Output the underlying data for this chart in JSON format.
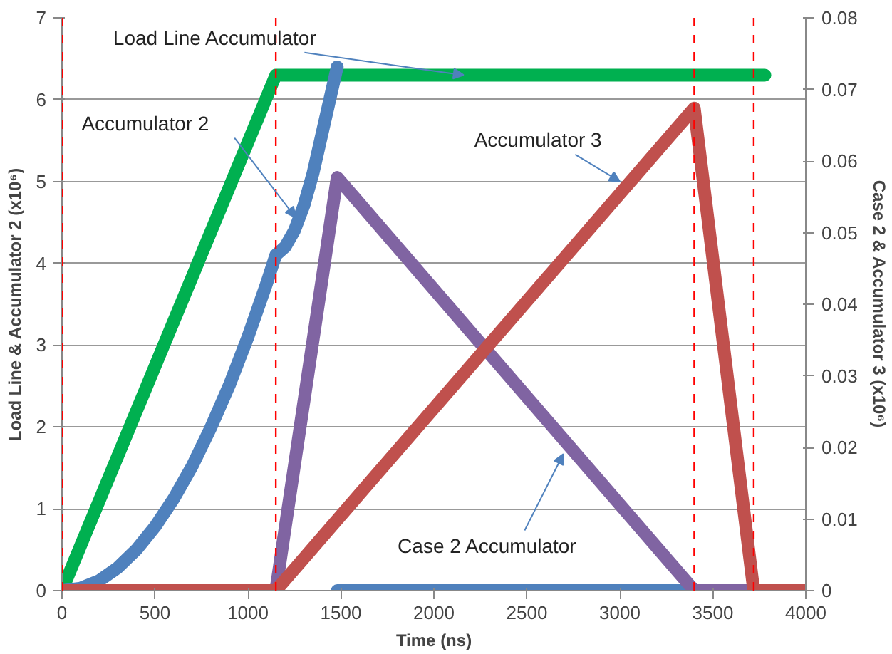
{
  "chart_data": {
    "type": "line",
    "xlabel": "Time (ns)",
    "ylabel": "Load Line & Accumulator 2 (x10⁶)",
    "y2label": "Case 2 & Accumulator 3 (x10⁶)",
    "xlim": [
      0,
      4000
    ],
    "xticks": [
      0,
      500,
      1000,
      1500,
      2000,
      2500,
      3000,
      3500,
      4000
    ],
    "ylim": [
      0,
      7
    ],
    "yticks": [
      0,
      1,
      2,
      3,
      4,
      5,
      6,
      7
    ],
    "y2lim": [
      0,
      0.08
    ],
    "y2ticks": [
      0,
      0.01,
      0.02,
      0.03,
      0.04,
      0.05,
      0.06,
      0.07,
      0.08
    ],
    "grid": "y",
    "line_style": "solid",
    "series": [
      {
        "color": "#00b050",
        "x": [
          0,
          1150,
          3780
        ],
        "values": [
          0,
          6.3,
          6.3
        ]
      },
      {
        "color": "#4f81bd",
        "x": [
          0,
          100,
          200,
          300,
          400,
          500,
          600,
          700,
          800,
          900,
          1000,
          1100,
          1150,
          1200,
          1250,
          1300,
          1350,
          1400,
          1480
        ],
        "values": [
          0,
          0.03,
          0.12,
          0.28,
          0.5,
          0.78,
          1.12,
          1.52,
          1.99,
          2.51,
          3.1,
          3.75,
          4.1,
          4.2,
          4.4,
          4.7,
          5.1,
          5.6,
          6.4
        ]
      },
      {
        "color": "#4f81bd",
        "x": [
          1480,
          3400
        ],
        "values": [
          0,
          0
        ]
      },
      {
        "color": "#8064a2",
        "axis": "y2",
        "x": [
          1150,
          1480,
          3400,
          3720
        ],
        "values": [
          0,
          0.0577,
          0,
          0
        ]
      },
      {
        "color": "#c0504d",
        "axis": "y2",
        "x": [
          0,
          1150,
          3400,
          3720,
          4000
        ],
        "values": [
          0,
          0,
          0.0674,
          0,
          0
        ]
      }
    ],
    "ref_lines": [
      {
        "axis": "x",
        "value": 0,
        "color": "#ff0000",
        "line_style": "dashed"
      },
      {
        "axis": "x",
        "value": 1150,
        "color": "#ff0000",
        "line_style": "dashed"
      },
      {
        "axis": "x",
        "value": 3400,
        "color": "#ff0000",
        "line_style": "dashed"
      },
      {
        "axis": "x",
        "value": 3720,
        "color": "#ff0000",
        "line_style": "dashed"
      }
    ],
    "annotations": [
      {
        "text": "Load Line Accumulator",
        "x": 2160,
        "y": 6.3
      },
      {
        "text": "Accumulator 2",
        "x": 1256,
        "y": 4.56
      },
      {
        "text": "Accumulator 3",
        "x": 3000,
        "y": 5.0
      },
      {
        "text": "Case 2 Accumulator",
        "x": 2696,
        "y": 1.67
      }
    ]
  }
}
